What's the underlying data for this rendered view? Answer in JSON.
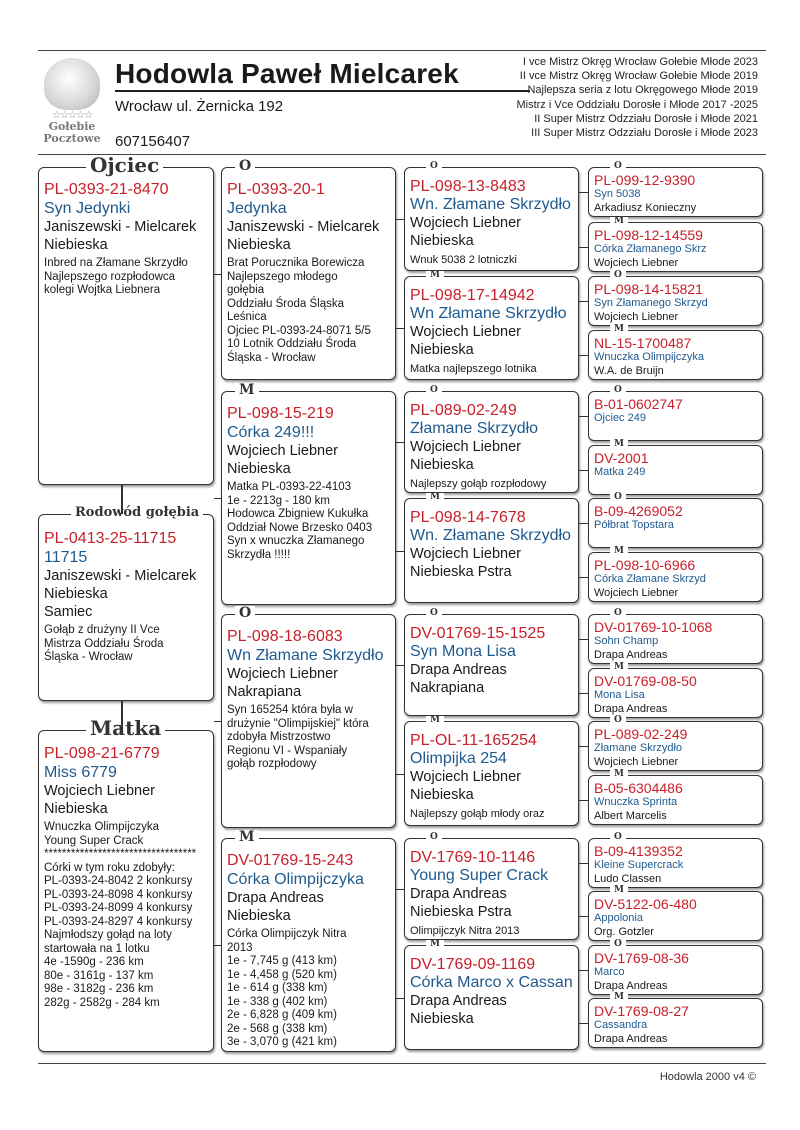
{
  "header": {
    "title": "Hodowla Paweł Mielcarek",
    "address": "Wrocław ul. Żernicka 192",
    "phone": "607156407",
    "logo_text": [
      "Gołebie",
      "Pocztowe"
    ],
    "achievements": [
      "I vce Mistrz Okręg Wrocław Gołebie Młode 2023",
      "II vce Mistrz Okręg Wrocław Gołebie Młode 2019",
      "Najlepsza seria z lotu Okręgowego Młode 2019",
      "Mistrz i Vce Oddziału Dorosłe i Młode  2017 -2025",
      "II Super Mistrz Odzziału Dorosłe i Młode 2021",
      "III Super Mistrz Odzziału Dorosłe i Młode 2023"
    ]
  },
  "colors": {
    "ring": "#c8202a",
    "name": "#1f5a8f"
  },
  "subject": {
    "label": "Rodowód gołębia",
    "ring": "PL-0413-25-11715",
    "name": "11715",
    "breeder": "Janiszewski - Mielcarek",
    "color": "Niebieska",
    "sex": "Samiec",
    "notes": [
      "Gołąb z drużyny II Vce",
      "Mistrza Oddziału Środa",
      "Śląska - Wrocław"
    ]
  },
  "parents": [
    {
      "label": "Ojciec",
      "ring": "PL-0393-21-8470",
      "name": "Syn Jedynki",
      "breeder": "Janiszewski - Mielcarek",
      "color": "Niebieska",
      "notes": [
        "Inbred na Złamane Skrzydło",
        "Najlepszego rozpłodowca",
        "kolegi Wojtka Liebnera"
      ]
    },
    {
      "label": "Matka",
      "ring": "PL-098-21-6779",
      "name": "Miss 6779",
      "breeder": "Wojciech Liebner",
      "color": "Niebieska",
      "notes": [
        "Wnuczka Olimpijczyka",
        "Young Super Crack",
        "**********************************",
        "Córki w tym roku zdobyły:",
        "PL-0393-24-8042 2 konkursy",
        "PL-0393-24-8098 4 konkursy",
        "PL-0393-24-8099 4 konkursy",
        "PL-0393-24-8297 4 konkursy",
        "Najmłodszy gołąd na loty",
        "startowała na 1 lotku",
        "4e -1590g - 236 km",
        "80e - 3161g - 137 km",
        "98e - 3182g - 236 km",
        "282g - 2582g - 284 km"
      ]
    }
  ],
  "grandparents": [
    {
      "label": "O",
      "ring": "PL-0393-20-1",
      "name": "Jedynka",
      "breeder": "Janiszewski - Mielcarek",
      "color": "Niebieska",
      "notes": [
        "Brat Porucznika Borewicza",
        "Najlepszego młodego",
        "gołębia",
        "Oddziału Środa Śląska",
        "Leśnica",
        "Ojciec PL-0393-24-8071 5/5",
        "10 Lotnik Oddziału Środa",
        "Śląska - Wrocław"
      ]
    },
    {
      "label": "M",
      "ring": "PL-098-15-219",
      "name": "Córka 249!!!",
      "breeder": "Wojciech Liebner",
      "color": "Niebieska",
      "notes": [
        "Matka PL-0393-22-4103",
        "1e - 2213g - 180 km",
        "Hodowca Zbigniew Kukułka",
        "Oddział Nowe Brzesko 0403",
        "Syn x wnuczka Złamanego",
        "Skrzydła !!!!!"
      ]
    },
    {
      "label": "O",
      "ring": "PL-098-18-6083",
      "name": "Wn Złamane Skrzydło",
      "breeder": "Wojciech Liebner",
      "color": "Nakrapiana",
      "notes": [
        "Syn 165254 która była w",
        "drużynie \"Olimpijskiej\" która",
        "zdobyła Mistrzostwo",
        "Regionu VI - Wspaniały",
        "gołąb rozpłodowy"
      ]
    },
    {
      "label": "M",
      "ring": "DV-01769-15-243",
      "name": "Córka Olimpijczyka",
      "breeder": "Drapa Andreas",
      "color": "Niebieska",
      "notes": [
        "Córka Olimpijczyk Nitra",
        "2013",
        "1e - 7,745 g (413 km)",
        "1e - 4,458 g (520 km)",
        "1e -    614 g (338 km)",
        "1e -    338 g (402 km)",
        "2e - 6,828 g (409 km)",
        "2e -    568 g (338 km)",
        "3e - 3,070 g (421 km)"
      ]
    }
  ],
  "great_grandparents": [
    {
      "label": "O",
      "ring": "PL-098-13-8483",
      "name": "Wn. Złamane Skrzydło",
      "breeder": "Wojciech Liebner",
      "color": "Niebieska",
      "notes": [
        "Wnuk 5038  2 lotniczki"
      ]
    },
    {
      "label": "M",
      "ring": "PL-098-17-14942",
      "name": "Wn Złamane Skrzydło",
      "breeder": "Wojciech Liebner",
      "color": "Niebieska",
      "notes": [
        "Matka najlepszego lotnika"
      ]
    },
    {
      "label": "O",
      "ring": "PL-089-02-249",
      "name": "Złamane Skrzydło",
      "breeder": "Wojciech Liebner",
      "color": "Niebieska",
      "notes": [
        "Najlepszy gołąb rozpłodowy"
      ]
    },
    {
      "label": "M",
      "ring": "PL-098-14-7678",
      "name": "Wn. Złamane Skrzydło",
      "breeder": "Wojciech Liebner",
      "color": "Niebieska Pstra",
      "notes": []
    },
    {
      "label": "O",
      "ring": "DV-01769-15-1525",
      "name": "Syn Mona Lisa",
      "breeder": "Drapa Andreas",
      "color": "Nakrapiana",
      "notes": []
    },
    {
      "label": "M",
      "ring": "PL-OL-11-165254",
      "name": "Olimpijka 254",
      "breeder": "Wojciech Liebner",
      "color": "Niebieska",
      "notes": [
        "Najlepszy gołąb młody oraz"
      ]
    },
    {
      "label": "O",
      "ring": "DV-1769-10-1146",
      "name": "Young Super Crack",
      "breeder": "Drapa Andreas",
      "color": "Niebieska Pstra",
      "notes": [
        "Olimpijczyk Nitra 2013"
      ]
    },
    {
      "label": "M",
      "ring": "DV-1769-09-1169",
      "name": "Córka Marco x Cassan",
      "breeder": "Drapa Andreas",
      "color": "Niebieska",
      "notes": []
    }
  ],
  "gg_grandparents": [
    {
      "label": "O",
      "ring": "PL-099-12-9390",
      "name": "Syn 5038",
      "breeder": "Arkadiusz Konieczny"
    },
    {
      "label": "M",
      "ring": "PL-098-12-14559",
      "name": "Córka Złamanego Skrz",
      "breeder": "Wojciech Liebner"
    },
    {
      "label": "O",
      "ring": "PL-098-14-15821",
      "name": "Syn Złamanego Skrzyd",
      "breeder": "Wojciech Liebner"
    },
    {
      "label": "M",
      "ring": "NL-15-1700487",
      "name": "Wnuczka Olimpijczyka",
      "breeder": "W.A. de Bruijn"
    },
    {
      "label": "O",
      "ring": "B-01-0602747",
      "name": "Ojciec 249",
      "breeder": ""
    },
    {
      "label": "M",
      "ring": "DV-2001",
      "name": "Matka 249",
      "breeder": ""
    },
    {
      "label": "O",
      "ring": "B-09-4269052",
      "name": "Półbrat Topstara",
      "breeder": ""
    },
    {
      "label": "M",
      "ring": "PL-098-10-6966",
      "name": "Córka Złamane Skrzyd",
      "breeder": "Wojciech Liebner"
    },
    {
      "label": "O",
      "ring": "DV-01769-10-1068",
      "name": "Sohn Champ",
      "breeder": "Drapa Andreas"
    },
    {
      "label": "M",
      "ring": "DV-01769-08-50",
      "name": "Mona Lisa",
      "breeder": "Drapa Andreas"
    },
    {
      "label": "O",
      "ring": "PL-089-02-249",
      "name": "Złamane Skrzydło",
      "breeder": "Wojciech Liebner"
    },
    {
      "label": "M",
      "ring": "B-05-6304486",
      "name": "Wnuczka Sprinta",
      "breeder": "Albert Marcelis"
    },
    {
      "label": "O",
      "ring": "B-09-4139352",
      "name": "Kleine Supercrack",
      "breeder": "Ludo Classen"
    },
    {
      "label": "M",
      "ring": "DV-5122-06-480",
      "name": "Appolonia",
      "breeder": "Org. Gotzler"
    },
    {
      "label": "O",
      "ring": "DV-1769-08-36",
      "name": "Marco",
      "breeder": "Drapa Andreas"
    },
    {
      "label": "M",
      "ring": "DV-1769-08-27",
      "name": "Cassandra",
      "breeder": "Drapa Andreas"
    }
  ],
  "footer": "Hodowla 2000 v4 ©"
}
